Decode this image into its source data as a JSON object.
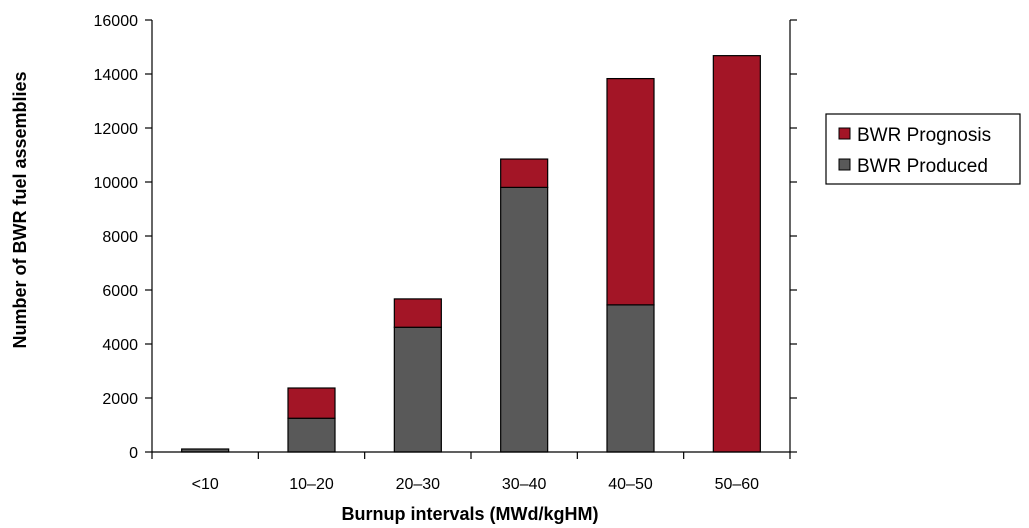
{
  "chart_data": {
    "type": "bar",
    "stacked": true,
    "categories": [
      "<10",
      "10–20",
      "20–30",
      "30–40",
      "40–50",
      "50–60"
    ],
    "series": [
      {
        "name": "BWR Produced",
        "values": [
          30,
          1250,
          4620,
          9800,
          5450,
          0
        ],
        "color": "#595959"
      },
      {
        "name": "BWR Prognosis",
        "values": [
          0,
          1120,
          1050,
          1050,
          8380,
          14680
        ],
        "color": "#a31526"
      }
    ],
    "xlabel": "Burnup intervals (MWd/kgHM)",
    "ylabel": "Number of BWR fuel assemblies",
    "ylim": [
      0,
      16000
    ],
    "yticks": [
      0,
      2000,
      4000,
      6000,
      8000,
      10000,
      12000,
      14000,
      16000
    ],
    "legend": {
      "position": "right",
      "entries": [
        "BWR Prognosis",
        "BWR Produced"
      ]
    },
    "grid": false
  }
}
